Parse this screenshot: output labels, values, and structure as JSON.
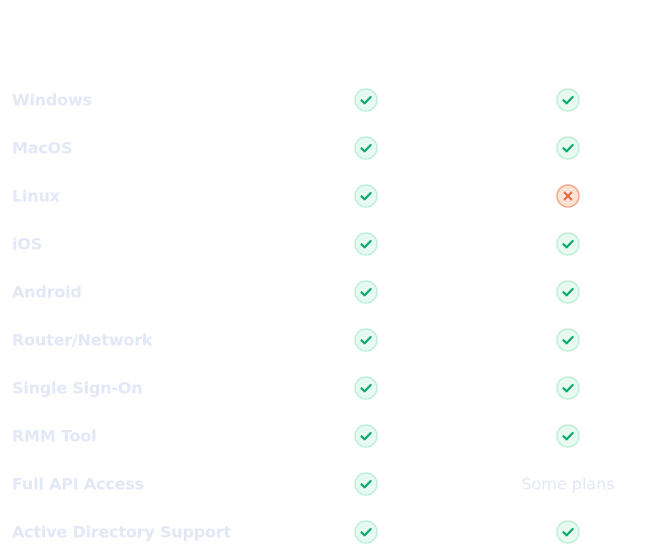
{
  "colors": {
    "check_fill": "#e6faf2",
    "check_ring": "#b5ecd6",
    "check_mark": "#0fa86c",
    "cross_fill": "#fde2d6",
    "cross_ring": "#f4a489",
    "cross_mark": "#e5663c",
    "muted_text": "#e3e8f6"
  },
  "rows": [
    {
      "feature": "Windows",
      "col_a": "check-icon",
      "col_b": "check-icon"
    },
    {
      "feature": "MacOS",
      "col_a": "check-icon",
      "col_b": "check-icon"
    },
    {
      "feature": "Linux",
      "col_a": "check-icon",
      "col_b": "cross-icon"
    },
    {
      "feature": "iOS",
      "col_a": "check-icon",
      "col_b": "check-icon"
    },
    {
      "feature": "Android",
      "col_a": "check-icon",
      "col_b": "check-icon"
    },
    {
      "feature": "Router/Network",
      "col_a": "check-icon",
      "col_b": "check-icon"
    },
    {
      "feature": "Single Sign-On",
      "col_a": "check-icon",
      "col_b": "check-icon"
    },
    {
      "feature": "RMM Tool",
      "col_a": "check-icon",
      "col_b": "check-icon"
    },
    {
      "feature": "Full API Access",
      "col_a": "check-icon",
      "col_b_text": "Some plans"
    },
    {
      "feature": "Active Directory Support",
      "col_a": "check-icon",
      "col_b": "check-icon"
    }
  ]
}
